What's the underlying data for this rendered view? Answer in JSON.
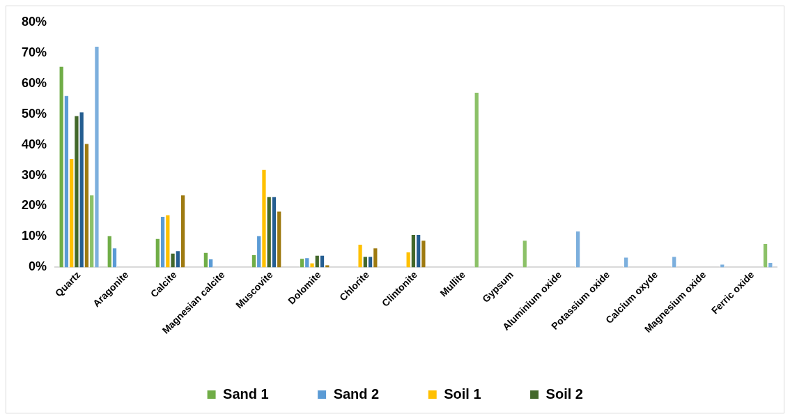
{
  "chart_data": {
    "type": "bar",
    "categories": [
      "Quartz",
      "Aragonite",
      "Calcite",
      "Magnesian calcite",
      "Muscovite",
      "Dolomite",
      "Chlorite",
      "Clintonite",
      "Mullite",
      "Gypsum",
      "Aluminium oxide",
      "Potassium oxide",
      "Calcium oxyde",
      "Magnesium oxide",
      "Ferric oxide"
    ],
    "series": [
      {
        "name": "Sand 1",
        "color": "#70ad47",
        "values": [
          65.7,
          10.4,
          9.5,
          4.9,
          4.2,
          3.0,
          null,
          null,
          null,
          null,
          null,
          null,
          null,
          null,
          null
        ]
      },
      {
        "name": "Sand 2",
        "color": "#5b9bd5",
        "values": [
          56.1,
          6.4,
          16.7,
          2.8,
          10.4,
          3.2,
          null,
          null,
          null,
          null,
          null,
          null,
          null,
          null,
          null
        ]
      },
      {
        "name": "Soil 1",
        "color": "#ffc000",
        "values": [
          35.6,
          null,
          17.2,
          null,
          32.0,
          1.5,
          7.6,
          5.1,
          null,
          null,
          null,
          null,
          null,
          null,
          null
        ]
      },
      {
        "name": "Soil 2",
        "color": "#43682b",
        "values": [
          49.6,
          null,
          4.7,
          null,
          23.1,
          4.0,
          3.6,
          10.8,
          null,
          null,
          null,
          null,
          null,
          null,
          null
        ]
      },
      {
        "color": "#255e91",
        "values": [
          50.8,
          null,
          5.5,
          null,
          23.1,
          4.0,
          3.6,
          10.8,
          null,
          null,
          null,
          null,
          null,
          null,
          null
        ]
      },
      {
        "color": "#9e7a10",
        "values": [
          40.5,
          null,
          23.7,
          null,
          18.4,
          0.9,
          6.4,
          8.9,
          null,
          null,
          null,
          null,
          null,
          null,
          null
        ]
      },
      {
        "color": "#8cc168",
        "values": [
          23.7,
          null,
          null,
          null,
          null,
          null,
          null,
          null,
          57.2,
          8.9,
          null,
          null,
          null,
          null,
          7.8
        ]
      },
      {
        "color": "#7cafdd",
        "values": [
          72.2,
          null,
          null,
          null,
          null,
          null,
          null,
          null,
          null,
          null,
          11.9,
          3.4,
          3.6,
          1.1,
          1.7
        ]
      }
    ],
    "ylim": [
      0,
      80
    ],
    "yticks": [
      {
        "value": 0,
        "label": "0%"
      },
      {
        "value": 10,
        "label": "10%"
      },
      {
        "value": 20,
        "label": "20%"
      },
      {
        "value": 30,
        "label": "30%"
      },
      {
        "value": 40,
        "label": "40%"
      },
      {
        "value": 50,
        "label": "50%"
      },
      {
        "value": 60,
        "label": "60%"
      },
      {
        "value": 70,
        "label": "70%"
      },
      {
        "value": 80,
        "label": "80%"
      }
    ],
    "legend": "bottom"
  }
}
